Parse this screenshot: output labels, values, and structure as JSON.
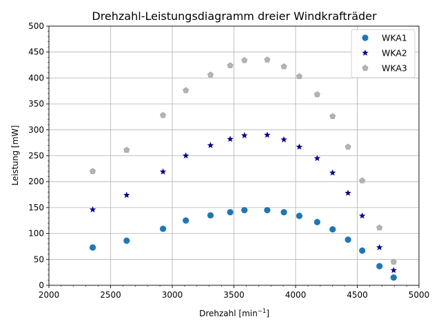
{
  "chart_data": {
    "type": "scatter",
    "title": "Drehzahl-Leistungsdiagramm dreier Windkrafträder",
    "xlabel": "Drehzahl [min",
    "xlabel_sup": "−1",
    "xlabel_end": "]",
    "ylabel": "Leistung [mW]",
    "xlim": [
      2000,
      5000
    ],
    "ylim": [
      0,
      500
    ],
    "xticks": [
      2000,
      2500,
      3000,
      3500,
      4000,
      4500,
      5000
    ],
    "yticks": [
      0,
      50,
      100,
      150,
      200,
      250,
      300,
      350,
      400,
      450,
      500
    ],
    "grid": true,
    "legend_position": "top-right",
    "x": [
      2355,
      2630,
      2925,
      3110,
      3310,
      3470,
      3585,
      3770,
      3905,
      4030,
      4175,
      4300,
      4425,
      4540,
      4680,
      4795
    ],
    "series": [
      {
        "name": "WKA1",
        "marker": "circle",
        "color": "#1f77b4",
        "values": [
          73,
          86,
          109,
          125,
          135,
          141,
          145,
          145,
          141,
          134,
          122,
          108,
          88,
          67,
          37,
          15
        ]
      },
      {
        "name": "WKA2",
        "marker": "star",
        "color": "#00008b",
        "values": [
          146,
          174,
          219,
          250,
          270,
          282,
          289,
          290,
          281,
          267,
          245,
          217,
          178,
          134,
          73,
          29
        ]
      },
      {
        "name": "WKA3",
        "marker": "pentagon",
        "color": "#b3b3b3",
        "values": [
          220,
          261,
          328,
          376,
          406,
          424,
          434,
          435,
          422,
          403,
          368,
          326,
          267,
          202,
          111,
          45
        ]
      }
    ]
  }
}
